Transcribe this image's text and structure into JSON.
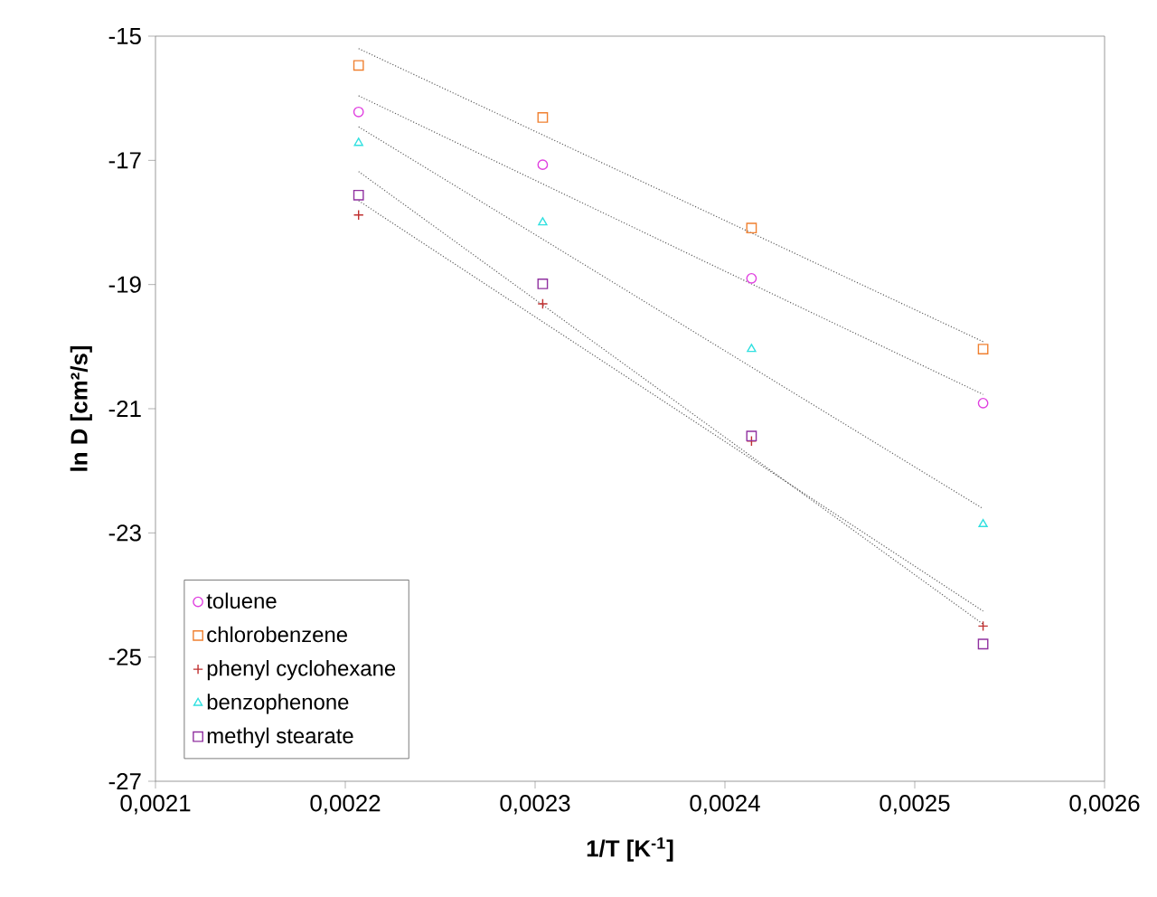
{
  "chart_data": {
    "type": "scatter",
    "xlabel": "1/T [K$^{-1}$]",
    "ylabel": "ln D [cm²/s]",
    "xlim": [
      0.0021,
      0.0026
    ],
    "ylim": [
      -27,
      -15
    ],
    "xticks": [
      {
        "value": 0.0021,
        "label": "0,0021"
      },
      {
        "value": 0.0022,
        "label": "0,0022"
      },
      {
        "value": 0.0023,
        "label": "0,0023"
      },
      {
        "value": 0.0024,
        "label": "0,0024"
      },
      {
        "value": 0.0025,
        "label": "0,0025"
      },
      {
        "value": 0.0026,
        "label": "0,0026"
      }
    ],
    "yticks": [
      -15,
      -17,
      -19,
      -21,
      -23,
      -25,
      -27
    ],
    "grid": false,
    "legend": "bottom left",
    "x": [
      0.002207,
      0.002304,
      0.002414,
      0.002536
    ],
    "series": [
      {
        "name": "toluene",
        "color": "#e040e0",
        "marker": "circle",
        "values": [
          -16.22,
          -17.07,
          -18.9,
          -20.91
        ]
      },
      {
        "name": "chlorobenzene",
        "color": "#f08030",
        "marker": "square",
        "values": [
          -15.47,
          -16.31,
          -18.09,
          -20.04
        ]
      },
      {
        "name": "phenyl cyclohexane",
        "color": "#c03030",
        "marker": "cross",
        "values": [
          -17.88,
          -19.31,
          -21.52,
          -24.5
        ]
      },
      {
        "name": "benzophenone",
        "color": "#30e0e0",
        "marker": "triangle",
        "values": [
          -16.72,
          -18.0,
          -20.04,
          -22.86
        ]
      },
      {
        "name": "methyl stearate",
        "color": "#9030a0",
        "marker": "square",
        "values": [
          -17.56,
          -18.99,
          -21.44,
          -24.79
        ]
      },
      {
        "type": "line",
        "color": "#606060",
        "line_style": "dotted",
        "values": [
          -15.96,
          -17.38,
          -18.99,
          -20.77
        ]
      },
      {
        "type": "line",
        "color": "#606060",
        "line_style": "dotted",
        "values": [
          -15.2,
          -16.59,
          -18.17,
          -19.92
        ]
      },
      {
        "type": "line",
        "color": "#606060",
        "line_style": "dotted",
        "values": [
          -17.65,
          -19.6,
          -21.81,
          -24.26
        ]
      },
      {
        "type": "line",
        "color": "#606060",
        "line_style": "dotted",
        "values": [
          -16.46,
          -18.27,
          -20.33,
          -22.61
        ]
      },
      {
        "type": "line",
        "color": "#606060",
        "line_style": "dotted",
        "values": [
          -17.18,
          -19.33,
          -21.77,
          -24.47
        ]
      }
    ]
  }
}
